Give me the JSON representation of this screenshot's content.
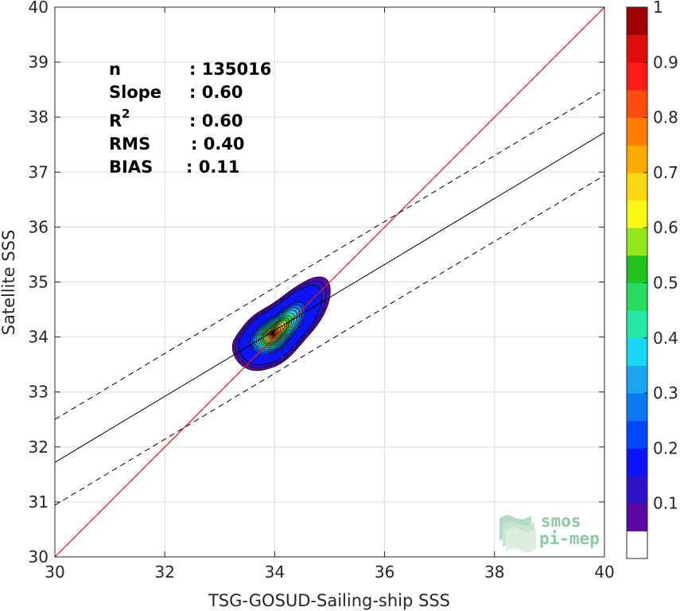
{
  "chart_data": {
    "type": "heatmap",
    "subtype": "density-contour-scatter",
    "xlabel": "TSG-GOSUD-Sailing-ship SSS",
    "ylabel": "Satellite SSS",
    "xlim": [
      30,
      40
    ],
    "ylim": [
      30,
      40
    ],
    "xticks": [
      30,
      32,
      34,
      36,
      38,
      40
    ],
    "yticks": [
      30,
      31,
      32,
      33,
      34,
      35,
      36,
      37,
      38,
      39,
      40
    ],
    "grid": true,
    "stats": [
      {
        "label": "n",
        "value": ": 135016"
      },
      {
        "label": "Slope",
        "value": ": 0.60"
      },
      {
        "label": "R",
        "sup": "2",
        "value": ": 0.60"
      },
      {
        "label": "RMS",
        "value": ": 0.40"
      },
      {
        "label": "BIAS",
        "value": ": 0.11"
      }
    ],
    "lines": {
      "identity": {
        "slope": 1,
        "intercept": 0,
        "color": "#e41a1c"
      },
      "regression": {
        "slope": 0.6,
        "intercept_at_30": 31.72,
        "color": "#000000"
      },
      "offset_upper": 0.78,
      "offset_lower": -0.78
    },
    "density_peak": {
      "x": 33.97,
      "y": 34.05
    },
    "secondary_peak": {
      "x": 34.63,
      "y": 34.6
    },
    "colorbar": {
      "ticks": [
        0.1,
        0.2,
        0.3,
        0.4,
        0.5,
        0.6,
        0.7,
        0.8,
        0.9,
        1
      ],
      "tick_labels": [
        "0.1",
        "0.2",
        "0.3",
        "0.4",
        "0.5",
        "0.6",
        "0.7",
        "0.8",
        "0.9",
        "1"
      ],
      "range": [
        0,
        1
      ],
      "levels": 20,
      "colors": [
        "#ffffff",
        "#5a06a3",
        "#2d14c9",
        "#0a14f5",
        "#0046ff",
        "#0a78f5",
        "#1aa6ee",
        "#19d7f5",
        "#25eaa5",
        "#27dd5d",
        "#1fc21f",
        "#92e81c",
        "#f9f915",
        "#ffd710",
        "#ffaa00",
        "#ff7d00",
        "#ff4d0c",
        "#ff1a1a",
        "#e00d0d",
        "#a30000",
        "#7a0000"
      ]
    }
  },
  "logo": {
    "line1": "smos",
    "line2": "pi-mep"
  }
}
